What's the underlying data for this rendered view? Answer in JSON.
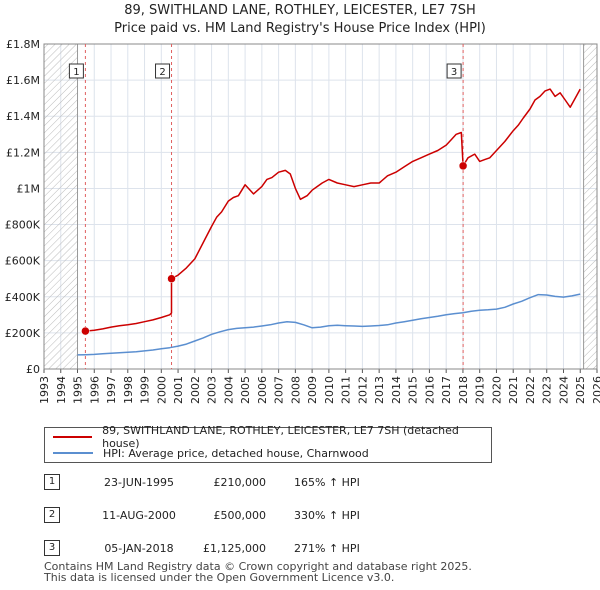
{
  "title_line1": "89, SWITHLAND LANE, ROTHLEY, LEICESTER, LE7 7SH",
  "title_line2": "Price paid vs. HM Land Registry's House Price Index (HPI)",
  "colors": {
    "property_line": "#cc0000",
    "hpi_line": "#5b8fd0",
    "hatch": "#bbbbbb",
    "marker_line": "#e06060",
    "grid": "#dde3ec",
    "plot_bg": "#ffffff"
  },
  "legend": {
    "property_label": "89, SWITHLAND LANE, ROTHLEY, LEICESTER, LE7 7SH (detached house)",
    "hpi_label": "HPI: Average price, detached house, Charnwood"
  },
  "transactions": [
    {
      "num": "1",
      "date": "23-JUN-1995",
      "price": "£210,000",
      "hpi": "165% ↑ HPI"
    },
    {
      "num": "2",
      "date": "11-AUG-2000",
      "price": "£500,000",
      "hpi": "330% ↑ HPI"
    },
    {
      "num": "3",
      "date": "05-JAN-2018",
      "price": "£1,125,000",
      "hpi": "271% ↑ HPI"
    }
  ],
  "footer_line1": "Contains HM Land Registry data © Crown copyright and database right 2025.",
  "footer_line2": "This data is licensed under the Open Government Licence v3.0.",
  "chart_data": {
    "type": "line",
    "title": "89, SWITHLAND LANE, ROTHLEY, LEICESTER, LE7 7SH",
    "subtitle": "Price paid vs. HM Land Registry's House Price Index (HPI)",
    "xlabel": "",
    "ylabel": "",
    "xlim": [
      1993,
      2026
    ],
    "ylim": [
      0,
      1800000
    ],
    "x_ticks": [
      1993,
      1994,
      1995,
      1996,
      1997,
      1998,
      1999,
      2000,
      2001,
      2002,
      2003,
      2004,
      2005,
      2006,
      2007,
      2008,
      2009,
      2010,
      2011,
      2012,
      2013,
      2014,
      2015,
      2016,
      2017,
      2018,
      2019,
      2020,
      2021,
      2022,
      2023,
      2024,
      2025,
      2026
    ],
    "y_ticks": [
      0,
      200000,
      400000,
      600000,
      800000,
      1000000,
      1200000,
      1400000,
      1600000,
      1800000
    ],
    "y_tick_labels": [
      "£0",
      "£200K",
      "£400K",
      "£600K",
      "£800K",
      "£1M",
      "£1.2M",
      "£1.4M",
      "£1.6M",
      "£1.8M"
    ],
    "hatched_ranges": [
      [
        1993,
        1995.0
      ],
      [
        2025.2,
        2026
      ]
    ],
    "sale_markers": [
      {
        "label": "1",
        "x": 1995.47,
        "y": 210000
      },
      {
        "label": "2",
        "x": 2000.61,
        "y": 500000
      },
      {
        "label": "3",
        "x": 2018.01,
        "y": 1125000
      }
    ],
    "series": [
      {
        "name": "89, SWITHLAND LANE, ROTHLEY, LEICESTER, LE7 7SH (detached house)",
        "color": "#cc0000",
        "x": [
          1995.47,
          1996,
          1996.5,
          1997,
          1997.5,
          1998,
          1998.5,
          1999,
          1999.5,
          2000,
          2000.5,
          2000.61,
          2000.61,
          2001,
          2001.5,
          2002,
          2002.5,
          2003,
          2003.3,
          2003.6,
          2004,
          2004.3,
          2004.6,
          2005,
          2005.5,
          2006,
          2006.3,
          2006.6,
          2007,
          2007.4,
          2007.7,
          2008,
          2008.3,
          2008.7,
          2009,
          2009.3,
          2009.6,
          2010,
          2010.5,
          2011,
          2011.5,
          2012,
          2012.5,
          2013,
          2013.5,
          2014,
          2014.5,
          2015,
          2015.5,
          2016,
          2016.5,
          2017,
          2017.3,
          2017.6,
          2017.9,
          2018.01,
          2018.01,
          2018.3,
          2018.7,
          2019,
          2019.3,
          2019.6,
          2020,
          2020.5,
          2021,
          2021.3,
          2021.6,
          2022,
          2022.3,
          2022.6,
          2022.9,
          2023.2,
          2023.5,
          2023.8,
          2024.1,
          2024.4,
          2024.7,
          2025.0
        ],
        "y": [
          210000,
          215000,
          222000,
          232000,
          240000,
          245000,
          252000,
          262000,
          272000,
          285000,
          300000,
          310000,
          500000,
          520000,
          560000,
          610000,
          700000,
          790000,
          840000,
          870000,
          930000,
          950000,
          960000,
          1020000,
          970000,
          1010000,
          1050000,
          1060000,
          1090000,
          1100000,
          1080000,
          1000000,
          940000,
          960000,
          990000,
          1010000,
          1030000,
          1050000,
          1030000,
          1020000,
          1010000,
          1020000,
          1030000,
          1030000,
          1070000,
          1090000,
          1120000,
          1150000,
          1170000,
          1190000,
          1210000,
          1240000,
          1270000,
          1300000,
          1310000,
          1125000,
          1125000,
          1170000,
          1190000,
          1150000,
          1160000,
          1170000,
          1210000,
          1260000,
          1320000,
          1350000,
          1390000,
          1440000,
          1490000,
          1510000,
          1540000,
          1550000,
          1510000,
          1530000,
          1490000,
          1450000,
          1500000,
          1550000
        ]
      },
      {
        "name": "HPI: Average price, detached house, Charnwood",
        "color": "#5b8fd0",
        "x": [
          1995.0,
          1995.5,
          1996,
          1996.5,
          1997,
          1997.5,
          1998,
          1998.5,
          1999,
          1999.5,
          2000,
          2000.5,
          2001,
          2001.5,
          2002,
          2002.5,
          2003,
          2003.5,
          2004,
          2004.5,
          2005,
          2005.5,
          2006,
          2006.5,
          2007,
          2007.5,
          2008,
          2008.5,
          2009,
          2009.5,
          2010,
          2010.5,
          2011,
          2011.5,
          2012,
          2012.5,
          2013,
          2013.5,
          2014,
          2014.5,
          2015,
          2015.5,
          2016,
          2016.5,
          2017,
          2017.5,
          2018,
          2018.5,
          2019,
          2019.5,
          2020,
          2020.5,
          2021,
          2021.5,
          2022,
          2022.5,
          2023,
          2023.5,
          2024,
          2024.5,
          2025.0
        ],
        "y": [
          78000,
          79000,
          81000,
          84000,
          87000,
          90000,
          93000,
          96000,
          100000,
          105000,
          112000,
          118000,
          127000,
          138000,
          155000,
          172000,
          192000,
          206000,
          218000,
          225000,
          229000,
          232000,
          238000,
          245000,
          255000,
          262000,
          258000,
          245000,
          228000,
          232000,
          240000,
          242000,
          240000,
          238000,
          236000,
          238000,
          241000,
          245000,
          255000,
          262000,
          270000,
          278000,
          285000,
          292000,
          300000,
          307000,
          312000,
          320000,
          325000,
          328000,
          332000,
          342000,
          360000,
          375000,
          395000,
          412000,
          410000,
          402000,
          398000,
          405000,
          415000
        ]
      }
    ]
  }
}
